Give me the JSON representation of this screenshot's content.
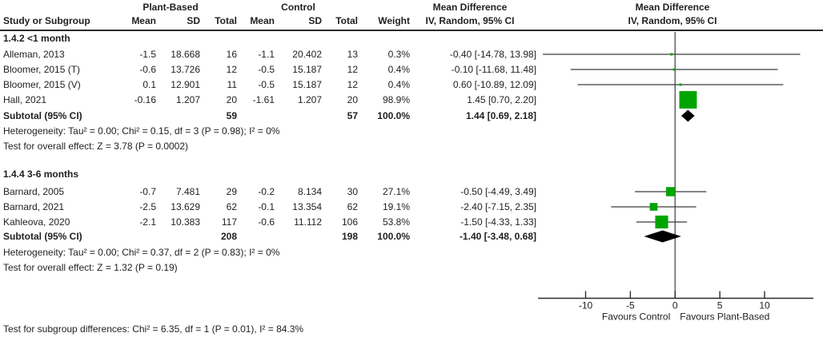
{
  "header": {
    "study_col": "Study or Subgroup",
    "group1_label": "Plant-Based",
    "group2_label": "Control",
    "cols": [
      "Mean",
      "SD",
      "Total",
      "Mean",
      "SD",
      "Total",
      "Weight"
    ],
    "md_col_line1": "Mean Difference",
    "md_col_line2": "IV, Random, 95% CI",
    "plot_col_line1": "Mean Difference",
    "plot_col_line2": "IV, Random, 95% CI"
  },
  "colors": {
    "square": "#00a400",
    "diamond": "#000000",
    "ci_line": "#3a3a3a",
    "axis_line": "#2b2b2b",
    "zero_line": "#5a5a5a",
    "text": "#1f1f1f"
  },
  "chart_data": {
    "type": "forest",
    "effect_measure": "Mean Difference IV, Random, 95% CI",
    "axis": {
      "min": -15.3,
      "max": 15.5,
      "ticks": [
        -10,
        -5,
        0,
        5,
        10
      ],
      "favours_left": "Favours Control",
      "favours_right": "Favours Plant-Based"
    },
    "subgroups": [
      {
        "label": "1.4.2 <1 month",
        "studies": [
          {
            "name": "Alleman, 2013",
            "mean1": "-1.5",
            "sd1": "18.668",
            "total1": "16",
            "mean2": "-1.1",
            "sd2": "20.402",
            "total2": "13",
            "weight": "0.3%",
            "weight_pct": 0.3,
            "md": "-0.40 [-14.78, 13.98]",
            "est": -0.4,
            "lo": -14.78,
            "hi": 13.98
          },
          {
            "name": "Bloomer, 2015 (T)",
            "mean1": "-0.6",
            "sd1": "13.726",
            "total1": "12",
            "mean2": "-0.5",
            "sd2": "15.187",
            "total2": "12",
            "weight": "0.4%",
            "weight_pct": 0.4,
            "md": "-0.10 [-11.68, 11.48]",
            "est": -0.1,
            "lo": -11.68,
            "hi": 11.48
          },
          {
            "name": "Bloomer, 2015 (V)",
            "mean1": "0.1",
            "sd1": "12.901",
            "total1": "11",
            "mean2": "-0.5",
            "sd2": "15.187",
            "total2": "12",
            "weight": "0.4%",
            "weight_pct": 0.4,
            "md": "0.60 [-10.89, 12.09]",
            "est": 0.6,
            "lo": -10.89,
            "hi": 12.09
          },
          {
            "name": "Hall, 2021",
            "mean1": "-0.16",
            "sd1": "1.207",
            "total1": "20",
            "mean2": "-1.61",
            "sd2": "1.207",
            "total2": "20",
            "weight": "98.9%",
            "weight_pct": 98.9,
            "md": "1.45 [0.70, 2.20]",
            "est": 1.45,
            "lo": 0.7,
            "hi": 2.2
          }
        ],
        "subtotal": {
          "label": "Subtotal (95% CI)",
          "total1": "59",
          "total2": "57",
          "weight": "100.0%",
          "md": "1.44 [0.69, 2.18]",
          "est": 1.44,
          "lo": 0.69,
          "hi": 2.18
        },
        "heterogeneity": "Heterogeneity: Tau² = 0.00; Chi² = 0.15, df = 3 (P = 0.98); I² = 0%",
        "overall_effect": "Test for overall effect: Z = 3.78 (P = 0.0002)"
      },
      {
        "label": "1.4.4 3-6 months",
        "studies": [
          {
            "name": "Barnard, 2005",
            "mean1": "-0.7",
            "sd1": "7.481",
            "total1": "29",
            "mean2": "-0.2",
            "sd2": "8.134",
            "total2": "30",
            "weight": "27.1%",
            "weight_pct": 27.1,
            "md": "-0.50 [-4.49, 3.49]",
            "est": -0.5,
            "lo": -4.49,
            "hi": 3.49
          },
          {
            "name": "Barnard, 2021",
            "mean1": "-2.5",
            "sd1": "13.629",
            "total1": "62",
            "mean2": "-0.1",
            "sd2": "13.354",
            "total2": "62",
            "weight": "19.1%",
            "weight_pct": 19.1,
            "md": "-2.40 [-7.15, 2.35]",
            "est": -2.4,
            "lo": -7.15,
            "hi": 2.35
          },
          {
            "name": "Kahleova, 2020",
            "mean1": "-2.1",
            "sd1": "10.383",
            "total1": "117",
            "mean2": "-0.6",
            "sd2": "11.112",
            "total2": "106",
            "weight": "53.8%",
            "weight_pct": 53.8,
            "md": "-1.50 [-4.33, 1.33]",
            "est": -1.5,
            "lo": -4.33,
            "hi": 1.33
          }
        ],
        "subtotal": {
          "label": "Subtotal (95% CI)",
          "total1": "208",
          "total2": "198",
          "weight": "100.0%",
          "md": "-1.40 [-3.48, 0.68]",
          "est": -1.4,
          "lo": -3.48,
          "hi": 0.68
        },
        "heterogeneity": "Heterogeneity: Tau² = 0.00; Chi² = 0.37, df = 2 (P = 0.83); I² = 0%",
        "overall_effect": "Test for overall effect: Z = 1.32 (P = 0.19)"
      }
    ],
    "footer_note": "Test for subgroup differences: Chi² = 6.35, df = 1 (P = 0.01), I² = 84.3%"
  }
}
